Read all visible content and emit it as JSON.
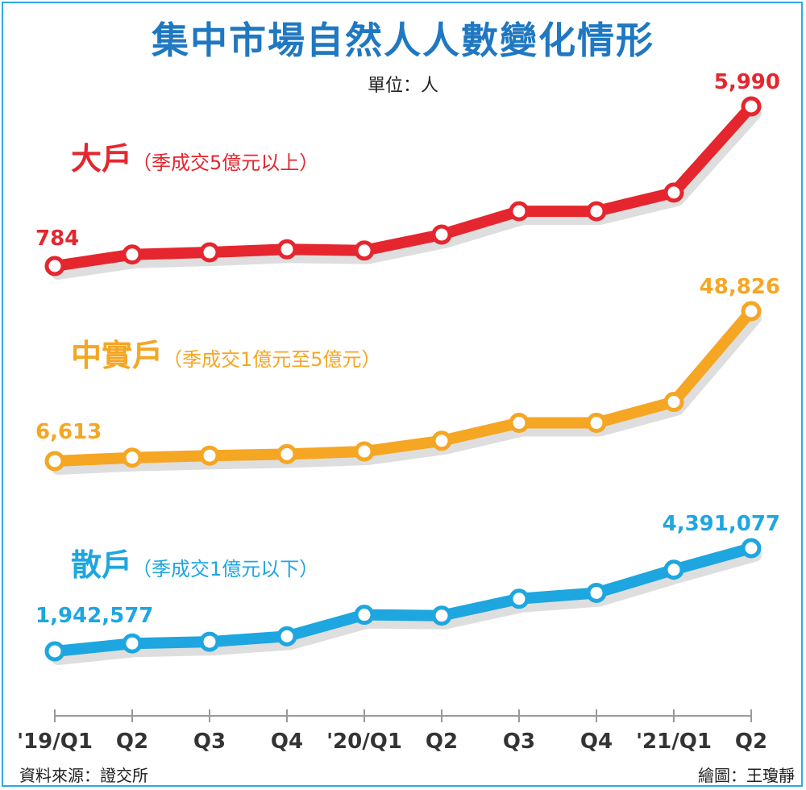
{
  "title": "集中市場自然人人數變化情形",
  "unit": "單位：人",
  "footer": {
    "source": "資料來源：證交所",
    "credit": "繪圖：王瓊靜"
  },
  "labels": {
    "large": {
      "name": "大戶",
      "condition": "（季成交5億元以上）"
    },
    "middle": {
      "name": "中實戶",
      "condition": "（季成交1億元至5億元）"
    },
    "retail": {
      "name": "散戶",
      "condition": "（季成交1億元以下）"
    }
  },
  "colors": {
    "large": "#e5262e",
    "middle": "#f5a623",
    "retail": "#1ea6e0",
    "title": "#1f78c1",
    "frame": "#2ea9df"
  },
  "chart_data": {
    "type": "line",
    "categories": [
      "'19/Q1",
      "Q2",
      "Q3",
      "Q4",
      "'20/Q1",
      "Q2",
      "Q3",
      "Q4",
      "'21/Q1",
      "Q2"
    ],
    "series": [
      {
        "name": "大戶",
        "key": "large",
        "values": [
          784,
          1160,
          1230,
          1330,
          1290,
          1810,
          2570,
          2570,
          3180,
          5990
        ],
        "labeled": {
          "first": "784",
          "last": "5,990"
        }
      },
      {
        "name": "中實戶",
        "key": "middle",
        "values": [
          6613,
          7590,
          8150,
          8580,
          9330,
          12330,
          17380,
          17380,
          23280,
          48826
        ],
        "labeled": {
          "first": "6,613",
          "last": "48,826"
        }
      },
      {
        "name": "散戶",
        "key": "retail",
        "values": [
          1942577,
          2130000,
          2170000,
          2300000,
          2810000,
          2790000,
          3190000,
          3330000,
          3880000,
          4391077
        ],
        "labeled": {
          "first": "1,942,577",
          "last": "4,391,077"
        }
      }
    ],
    "grid": false,
    "legend": "inline-labels"
  }
}
